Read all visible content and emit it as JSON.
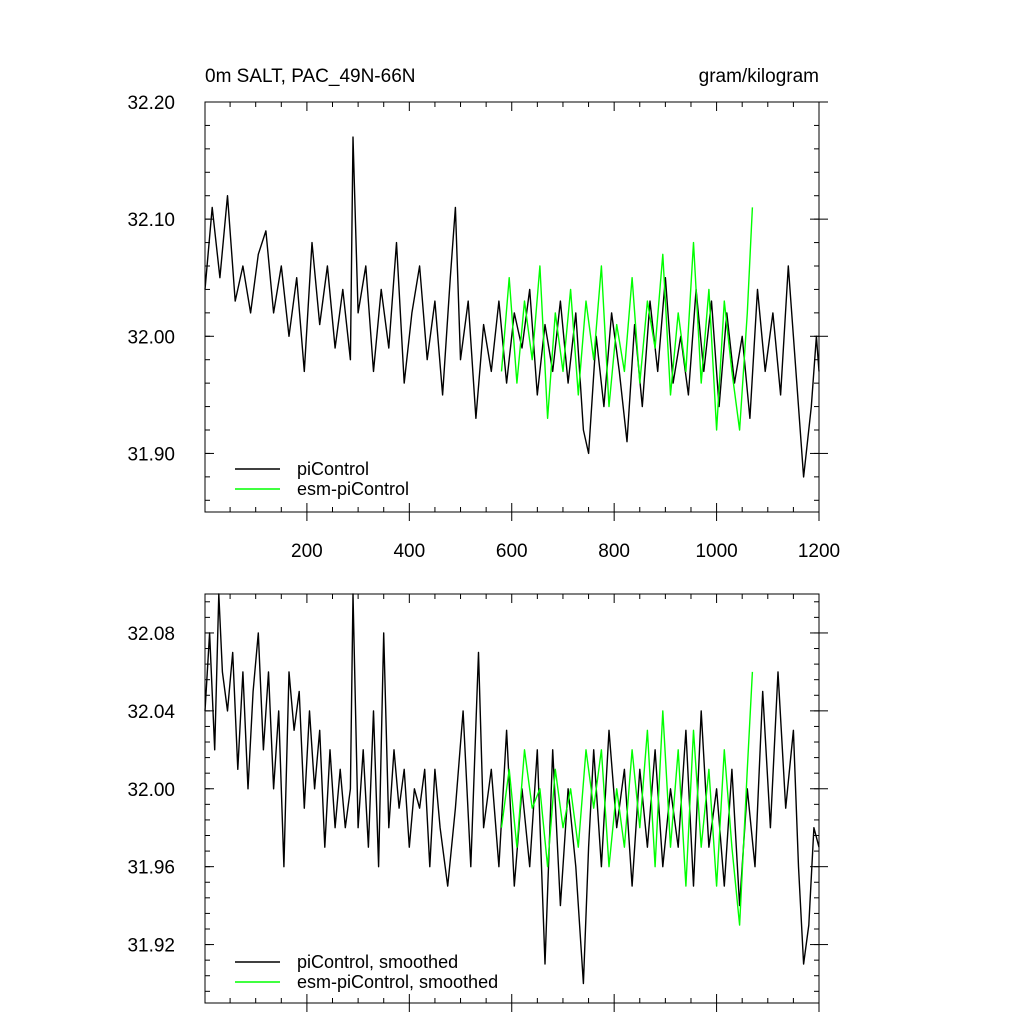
{
  "figure": {
    "title_left": "0m SALT, PAC_49N-66N",
    "title_right": "gram/kilogram"
  },
  "chart_data": [
    {
      "type": "line",
      "panel": "top",
      "title": "0m SALT, PAC_49N-66N",
      "units": "gram/kilogram",
      "xlim": [
        1,
        1200
      ],
      "ylim": [
        31.85,
        32.2
      ],
      "x_ticks": [
        200,
        400,
        600,
        800,
        1000,
        1200
      ],
      "x_tick_labels": [
        "200",
        "400",
        "600",
        "800",
        "1000",
        "1200"
      ],
      "y_ticks": [
        31.9,
        32.0,
        32.1,
        32.2
      ],
      "y_tick_labels": [
        "31.90",
        "32.00",
        "32.10",
        "32.20"
      ],
      "grid": false,
      "legend_position": "bottom-left",
      "series": [
        {
          "name": "piControl",
          "color": "#000000",
          "x": [
            1,
            15,
            30,
            45,
            60,
            75,
            90,
            105,
            120,
            135,
            150,
            165,
            180,
            195,
            210,
            225,
            240,
            255,
            270,
            285,
            290,
            300,
            315,
            330,
            345,
            360,
            375,
            390,
            405,
            420,
            435,
            450,
            465,
            480,
            490,
            500,
            515,
            530,
            545,
            560,
            575,
            590,
            605,
            620,
            635,
            650,
            665,
            680,
            695,
            710,
            725,
            740,
            750,
            765,
            780,
            795,
            810,
            825,
            840,
            855,
            870,
            885,
            900,
            915,
            930,
            945,
            960,
            975,
            990,
            1005,
            1020,
            1035,
            1050,
            1065,
            1080,
            1095,
            1110,
            1125,
            1140,
            1150,
            1160,
            1170,
            1175,
            1185,
            1195,
            1200
          ],
          "values": [
            32.04,
            32.11,
            32.05,
            32.12,
            32.03,
            32.06,
            32.02,
            32.07,
            32.09,
            32.02,
            32.06,
            32.0,
            32.05,
            31.97,
            32.08,
            32.01,
            32.06,
            31.99,
            32.04,
            31.98,
            32.17,
            32.02,
            32.06,
            31.97,
            32.04,
            31.99,
            32.08,
            31.96,
            32.02,
            32.06,
            31.98,
            32.03,
            31.95,
            32.05,
            32.11,
            31.98,
            32.03,
            31.93,
            32.01,
            31.97,
            32.03,
            31.96,
            32.02,
            31.99,
            32.04,
            31.95,
            32.01,
            31.97,
            32.03,
            31.96,
            32.02,
            31.92,
            31.9,
            32.0,
            31.94,
            32.02,
            31.97,
            31.91,
            32.01,
            31.94,
            32.03,
            31.97,
            32.05,
            31.96,
            32.0,
            31.95,
            32.04,
            31.97,
            32.03,
            31.94,
            32.02,
            31.96,
            32.0,
            31.93,
            32.04,
            31.97,
            32.02,
            31.95,
            32.06,
            32.0,
            31.94,
            31.88,
            31.9,
            31.94,
            32.0,
            31.97
          ]
        },
        {
          "name": "esm-piControl",
          "color": "#00ff00",
          "x": [
            580,
            595,
            610,
            625,
            640,
            655,
            670,
            685,
            700,
            715,
            730,
            745,
            760,
            775,
            790,
            805,
            820,
            835,
            850,
            865,
            880,
            895,
            910,
            925,
            940,
            955,
            970,
            985,
            1000,
            1015,
            1030,
            1045,
            1060,
            1070
          ],
          "values": [
            31.97,
            32.05,
            31.96,
            32.03,
            31.98,
            32.06,
            31.93,
            32.02,
            31.97,
            32.04,
            31.95,
            32.03,
            31.98,
            32.06,
            31.94,
            32.01,
            31.97,
            32.05,
            31.96,
            32.03,
            31.99,
            32.07,
            31.95,
            32.02,
            31.97,
            32.08,
            31.96,
            32.04,
            31.92,
            32.03,
            31.97,
            31.92,
            32.02,
            32.11
          ]
        }
      ]
    },
    {
      "type": "line",
      "panel": "bottom",
      "xlim": [
        1,
        1200
      ],
      "ylim": [
        31.89,
        32.1
      ],
      "x_ticks": [
        200,
        400,
        600,
        800,
        1000,
        1200
      ],
      "y_ticks": [
        31.92,
        31.96,
        32.0,
        32.04,
        32.08
      ],
      "y_tick_labels": [
        "31.92",
        "31.96",
        "32.00",
        "32.04",
        "32.08"
      ],
      "grid": false,
      "legend_position": "bottom-left",
      "series": [
        {
          "name": "piControl, smoothed",
          "color": "#000000",
          "x": [
            1,
            10,
            20,
            28,
            35,
            45,
            55,
            65,
            75,
            85,
            95,
            105,
            115,
            125,
            135,
            145,
            155,
            165,
            175,
            185,
            195,
            205,
            215,
            225,
            235,
            245,
            255,
            265,
            275,
            285,
            290,
            300,
            310,
            320,
            330,
            340,
            350,
            360,
            370,
            380,
            390,
            400,
            410,
            420,
            430,
            440,
            450,
            460,
            475,
            490,
            505,
            520,
            535,
            545,
            560,
            575,
            590,
            605,
            620,
            635,
            650,
            665,
            680,
            695,
            710,
            725,
            740,
            750,
            760,
            775,
            790,
            805,
            820,
            835,
            850,
            865,
            880,
            895,
            910,
            925,
            940,
            955,
            970,
            985,
            1000,
            1015,
            1030,
            1045,
            1060,
            1075,
            1090,
            1105,
            1120,
            1135,
            1150,
            1160,
            1170,
            1180,
            1190,
            1200
          ],
          "values": [
            32.04,
            32.08,
            32.02,
            32.1,
            32.06,
            32.04,
            32.07,
            32.01,
            32.06,
            32.0,
            32.05,
            32.08,
            32.02,
            32.06,
            32.0,
            32.04,
            31.96,
            32.06,
            32.03,
            32.05,
            31.99,
            32.04,
            32.0,
            32.03,
            31.97,
            32.02,
            31.98,
            32.01,
            31.98,
            32.0,
            32.1,
            31.98,
            32.02,
            31.97,
            32.04,
            31.96,
            32.08,
            31.98,
            32.02,
            31.99,
            32.01,
            31.97,
            32.0,
            31.99,
            32.01,
            31.96,
            32.01,
            31.98,
            31.95,
            31.99,
            32.04,
            31.96,
            32.07,
            31.98,
            32.01,
            31.96,
            32.03,
            31.95,
            32.0,
            31.96,
            32.02,
            31.91,
            32.02,
            31.94,
            32.0,
            31.96,
            31.9,
            31.97,
            32.02,
            31.96,
            32.03,
            31.98,
            32.01,
            31.95,
            32.01,
            31.97,
            32.02,
            31.96,
            32.0,
            31.97,
            32.03,
            31.95,
            32.04,
            31.97,
            32.0,
            31.95,
            32.01,
            31.94,
            32.0,
            31.96,
            32.05,
            31.98,
            32.06,
            31.99,
            32.03,
            31.96,
            31.91,
            31.93,
            31.98,
            31.97
          ]
        },
        {
          "name": "esm-piControl, smoothed",
          "color": "#00ff00",
          "x": [
            580,
            595,
            610,
            625,
            640,
            655,
            670,
            685,
            700,
            715,
            730,
            745,
            760,
            775,
            790,
            805,
            820,
            835,
            850,
            865,
            880,
            895,
            910,
            925,
            940,
            955,
            970,
            985,
            1000,
            1015,
            1030,
            1045,
            1060,
            1070
          ],
          "values": [
            31.98,
            32.01,
            31.97,
            32.02,
            31.99,
            32.0,
            31.96,
            32.01,
            31.98,
            32.0,
            31.97,
            32.02,
            31.99,
            32.02,
            31.96,
            32.0,
            31.97,
            32.02,
            31.98,
            32.03,
            31.96,
            32.04,
            31.97,
            32.02,
            31.95,
            32.03,
            31.97,
            32.01,
            31.95,
            32.02,
            31.97,
            31.93,
            32.01,
            32.06
          ]
        }
      ]
    }
  ]
}
